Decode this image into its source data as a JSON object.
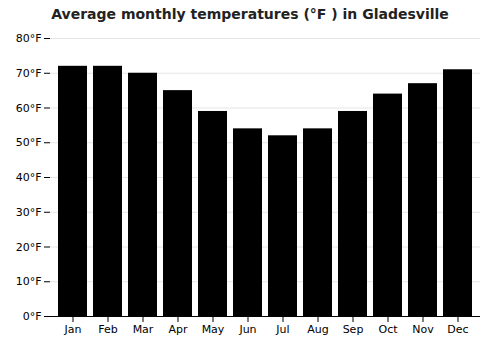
{
  "chart_data": {
    "type": "bar",
    "title": "Average monthly temperatures (°F ) in Gladesville",
    "categories": [
      "Jan",
      "Feb",
      "Mar",
      "Apr",
      "May",
      "Jun",
      "Jul",
      "Aug",
      "Sep",
      "Oct",
      "Nov",
      "Dec"
    ],
    "values": [
      72,
      72,
      70,
      65,
      59,
      54,
      52,
      54,
      59,
      64,
      67,
      71
    ],
    "ylim": [
      0,
      80
    ],
    "yticks": [
      {
        "value": 0,
        "label": "0°F"
      },
      {
        "value": 10,
        "label": "10°F"
      },
      {
        "value": 20,
        "label": "20°F"
      },
      {
        "value": 30,
        "label": "30°F"
      },
      {
        "value": 40,
        "label": "40°F"
      },
      {
        "value": 50,
        "label": "50°F"
      },
      {
        "value": 60,
        "label": "60°F"
      },
      {
        "value": 70,
        "label": "70°F"
      },
      {
        "value": 80,
        "label": "80°F"
      }
    ],
    "grid": true
  }
}
